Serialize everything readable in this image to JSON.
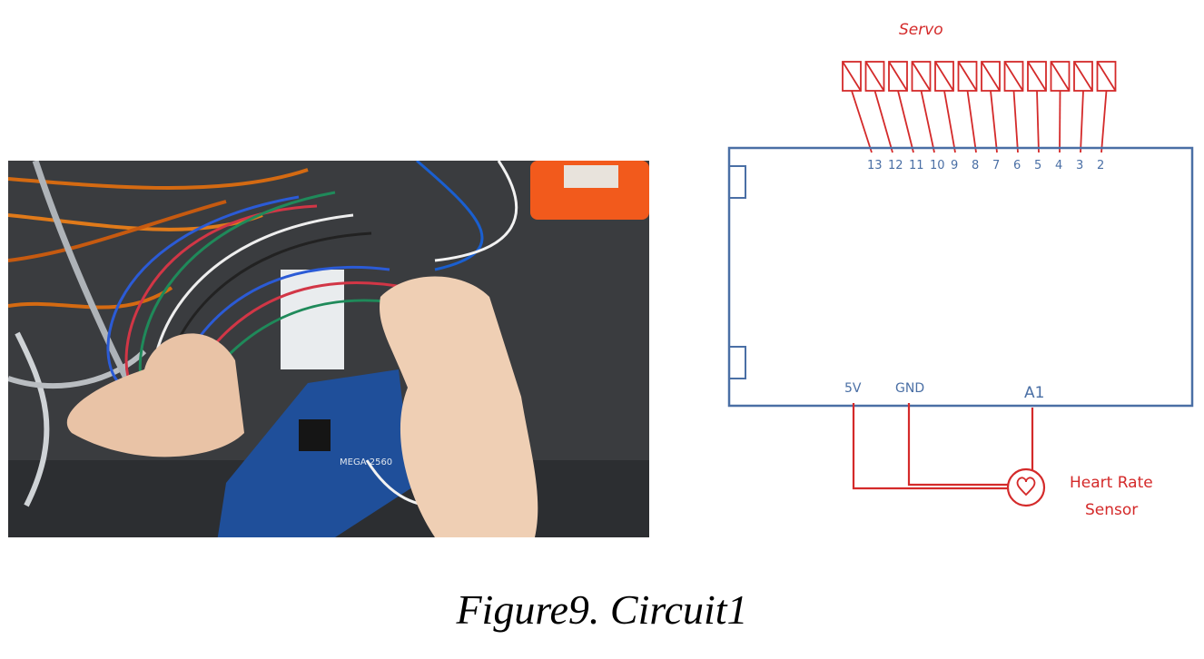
{
  "caption": "Figure9. Circuit1",
  "photo": {
    "board_label": "MEGA 2560"
  },
  "diagram": {
    "servo_label": "Servo",
    "pins": [
      "13",
      "12",
      "11",
      "10",
      "9",
      "8",
      "7",
      "6",
      "5",
      "4",
      "3",
      "2"
    ],
    "power_label": "5V",
    "ground_label": "GND",
    "analog_label": "A1",
    "sensor_label_line1": "Heart Rate",
    "sensor_label_line2": "Sensor"
  },
  "colors": {
    "board_outline": "#4a6fa5",
    "wires": "#d42a2a",
    "servo": "#d42a2a"
  }
}
